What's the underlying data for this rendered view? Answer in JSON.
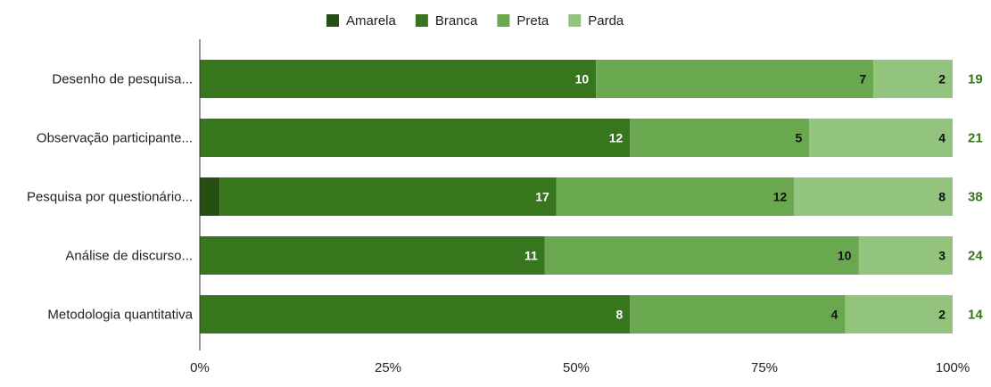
{
  "chart_data": {
    "type": "bar",
    "orientation": "horizontal",
    "stacked": "percent",
    "categories": [
      "Desenho de pesquisa...",
      "Observação participante...",
      "Pesquisa por questionário...",
      "Análise de discurso...",
      "Metodologia quantitativa"
    ],
    "series": [
      {
        "name": "Amarela",
        "values": [
          0,
          0,
          1,
          0,
          0
        ],
        "color": "#274e13"
      },
      {
        "name": "Branca",
        "values": [
          10,
          12,
          17,
          11,
          8
        ],
        "color": "#38761d"
      },
      {
        "name": "Preta",
        "values": [
          7,
          5,
          12,
          10,
          4
        ],
        "color": "#6aa84f"
      },
      {
        "name": "Parda",
        "values": [
          2,
          4,
          8,
          3,
          2
        ],
        "color": "#93c47d"
      }
    ],
    "totals": [
      19,
      21,
      38,
      24,
      14
    ],
    "totals_color": "#38761d",
    "x_ticks": [
      "0%",
      "25%",
      "50%",
      "75%",
      "100%"
    ],
    "xlim": [
      0,
      100
    ],
    "legend_position": "top",
    "grid": false
  }
}
